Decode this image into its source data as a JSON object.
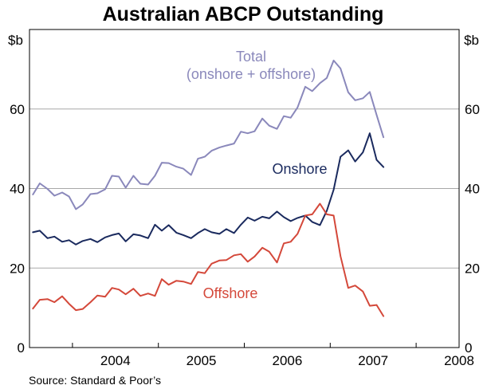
{
  "chart_data": {
    "type": "line",
    "title": "Australian ABCP Outstanding",
    "unit_left": "$b",
    "unit_right": "$b",
    "source": "Source: Standard & Poor’s",
    "ylim": [
      0,
      80
    ],
    "yticks": [
      "0",
      "20",
      "40",
      "60"
    ],
    "xlim": [
      2003.5,
      2008.5
    ],
    "xticks": [
      "2004",
      "2005",
      "2006",
      "2007",
      "2008"
    ],
    "grid": true,
    "series": [
      {
        "name": "Total",
        "sublabel": "(onshore + offshore)",
        "color": "#8a88bb",
        "x": [
          2003.54,
          2003.62,
          2003.71,
          2003.79,
          2003.88,
          2003.96,
          2004.04,
          2004.12,
          2004.21,
          2004.29,
          2004.38,
          2004.46,
          2004.54,
          2004.62,
          2004.71,
          2004.79,
          2004.88,
          2004.96,
          2005.04,
          2005.12,
          2005.21,
          2005.29,
          2005.38,
          2005.46,
          2005.54,
          2005.62,
          2005.71,
          2005.79,
          2005.88,
          2005.96,
          2006.04,
          2006.12,
          2006.21,
          2006.29,
          2006.38,
          2006.46,
          2006.54,
          2006.62,
          2006.71,
          2006.79,
          2006.88,
          2006.96,
          2007.04,
          2007.12,
          2007.21,
          2007.29,
          2007.38,
          2007.46,
          2007.54,
          2007.62
        ],
        "values": [
          38.5,
          41.3,
          39.9,
          38.2,
          39.0,
          38.0,
          34.8,
          36.0,
          38.6,
          38.8,
          39.8,
          43.2,
          43.0,
          40.2,
          43.2,
          41.2,
          41.0,
          43.2,
          46.5,
          46.4,
          45.5,
          45.0,
          43.4,
          47.5,
          48.0,
          49.5,
          50.3,
          50.8,
          51.3,
          54.3,
          53.9,
          54.4,
          57.6,
          55.8,
          55.0,
          58.2,
          57.8,
          60.4,
          65.6,
          64.5,
          66.5,
          67.8,
          72.2,
          70.2,
          64.2,
          62.2,
          62.7,
          64.3,
          58.5,
          52.9
        ]
      },
      {
        "name": "Onshore",
        "color": "#1a2a5e",
        "x": [
          2003.54,
          2003.62,
          2003.71,
          2003.79,
          2003.88,
          2003.96,
          2004.04,
          2004.12,
          2004.21,
          2004.29,
          2004.38,
          2004.46,
          2004.54,
          2004.62,
          2004.71,
          2004.79,
          2004.88,
          2004.96,
          2005.04,
          2005.12,
          2005.21,
          2005.29,
          2005.38,
          2005.46,
          2005.54,
          2005.62,
          2005.71,
          2005.79,
          2005.88,
          2005.96,
          2006.04,
          2006.12,
          2006.21,
          2006.29,
          2006.38,
          2006.46,
          2006.54,
          2006.62,
          2006.71,
          2006.79,
          2006.88,
          2006.96,
          2007.04,
          2007.12,
          2007.21,
          2007.29,
          2007.38,
          2007.46,
          2007.54,
          2007.62
        ],
        "values": [
          29.0,
          29.4,
          27.5,
          27.9,
          26.6,
          27.0,
          25.9,
          26.8,
          27.3,
          26.5,
          27.7,
          28.3,
          28.7,
          26.7,
          28.5,
          28.2,
          27.5,
          30.9,
          29.4,
          30.8,
          28.9,
          28.3,
          27.5,
          28.8,
          29.8,
          29.0,
          28.6,
          29.8,
          28.8,
          30.9,
          32.7,
          31.9,
          32.9,
          32.5,
          34.2,
          32.8,
          31.8,
          32.6,
          33.2,
          31.6,
          30.8,
          34.4,
          39.7,
          48.0,
          49.6,
          46.8,
          49.1,
          53.9,
          47.2,
          45.4
        ]
      },
      {
        "name": "Offshore",
        "color": "#d4483a",
        "x": [
          2003.54,
          2003.62,
          2003.71,
          2003.79,
          2003.88,
          2003.96,
          2004.04,
          2004.12,
          2004.21,
          2004.29,
          2004.38,
          2004.46,
          2004.54,
          2004.62,
          2004.71,
          2004.79,
          2004.88,
          2004.96,
          2005.04,
          2005.12,
          2005.21,
          2005.29,
          2005.38,
          2005.46,
          2005.54,
          2005.62,
          2005.71,
          2005.79,
          2005.88,
          2005.96,
          2006.04,
          2006.12,
          2006.21,
          2006.29,
          2006.38,
          2006.46,
          2006.54,
          2006.62,
          2006.71,
          2006.79,
          2006.88,
          2006.96,
          2007.04,
          2007.12,
          2007.21,
          2007.29,
          2007.38,
          2007.46,
          2007.54,
          2007.62
        ],
        "values": [
          9.8,
          12.0,
          12.2,
          11.4,
          12.9,
          11.0,
          9.4,
          9.7,
          11.4,
          13.1,
          12.8,
          15.0,
          14.6,
          13.4,
          14.8,
          13.0,
          13.6,
          13.0,
          17.2,
          15.8,
          16.8,
          16.6,
          16.0,
          19.0,
          18.7,
          21.1,
          21.9,
          22.0,
          23.2,
          23.5,
          21.6,
          22.9,
          25.1,
          24.1,
          21.4,
          26.2,
          26.6,
          28.6,
          33.2,
          33.5,
          36.2,
          33.5,
          33.2,
          23.0,
          15.0,
          15.6,
          14.1,
          10.5,
          10.7,
          7.9
        ]
      }
    ]
  }
}
